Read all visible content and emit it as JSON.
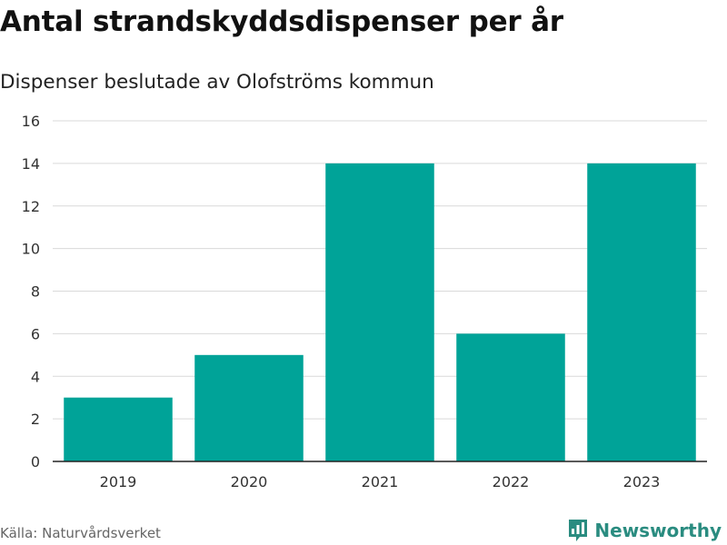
{
  "header": {
    "title": "Antal strandskyddsdispenser per år",
    "subtitle": "Dispenser beslutade av Olofströms kommun"
  },
  "footer": {
    "source": "Källa: Naturvårdsverket",
    "brand": "Newsworthy",
    "brand_color": "#2a8c80"
  },
  "chart_data": {
    "type": "bar",
    "title": "Antal strandskyddsdispenser per år",
    "subtitle": "Dispenser beslutade av Olofströms kommun",
    "xlabel": "",
    "ylabel": "",
    "categories": [
      "2019",
      "2020",
      "2021",
      "2022",
      "2023"
    ],
    "values": [
      3,
      5,
      14,
      6,
      14
    ],
    "ylim": [
      0,
      16
    ],
    "yticks": [
      0,
      2,
      4,
      6,
      8,
      10,
      12,
      14,
      16
    ],
    "grid": true,
    "legend": "none",
    "bar_color": "#00a398"
  }
}
